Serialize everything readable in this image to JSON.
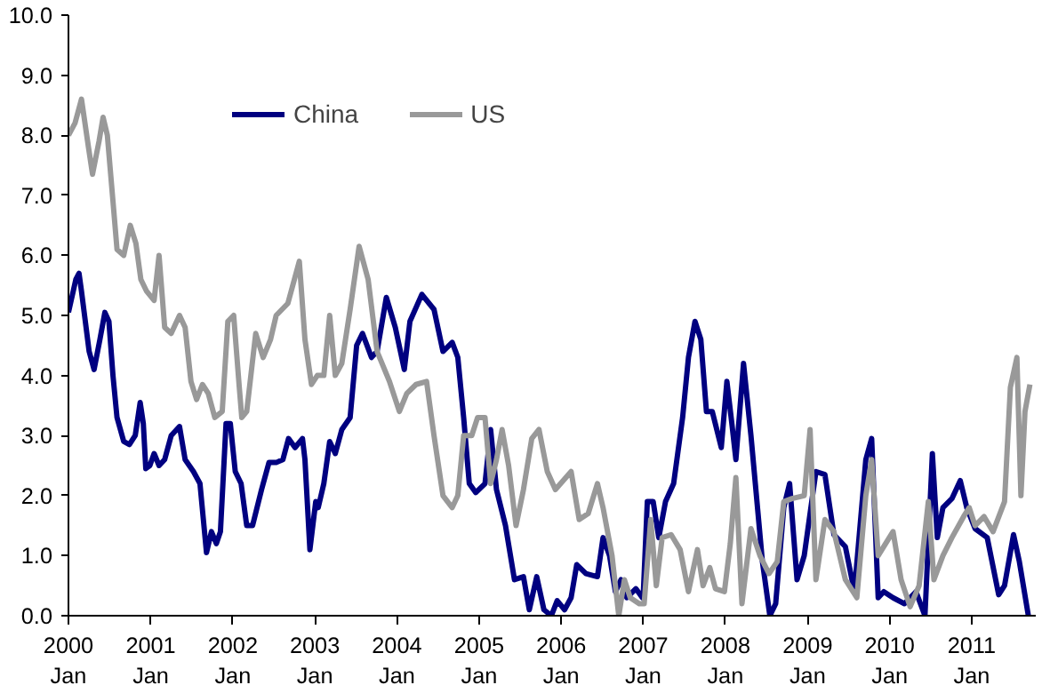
{
  "chart_data": {
    "type": "line",
    "xlim": [
      "2000-01-01",
      "2011-10-13"
    ],
    "ylim": [
      0,
      10
    ],
    "xticks": [
      {
        "value": "2000-01",
        "label": "2000\nJan"
      },
      {
        "value": "2001-01",
        "label": "2001\nJan"
      },
      {
        "value": "2002-01",
        "label": "2002\nJan"
      },
      {
        "value": "2003-01",
        "label": "2003\nJan"
      },
      {
        "value": "2004-01",
        "label": "2004\nJan"
      },
      {
        "value": "2005-01",
        "label": "2005\nJan"
      },
      {
        "value": "2006-01",
        "label": "2006\nJan"
      },
      {
        "value": "2007-01",
        "label": "2007\nJan"
      },
      {
        "value": "2008-01",
        "label": "2008\nJan"
      },
      {
        "value": "2009-01",
        "label": "2009\nJan"
      },
      {
        "value": "2010-01",
        "label": "2010\nJan"
      },
      {
        "value": "2011-01",
        "label": "2011\nJan"
      }
    ],
    "yticks": [
      {
        "value": 0,
        "label": "0.0"
      },
      {
        "value": 1,
        "label": "1.0"
      },
      {
        "value": 2,
        "label": "2.0"
      },
      {
        "value": 3,
        "label": "3.0"
      },
      {
        "value": 4,
        "label": "4.0"
      },
      {
        "value": 5,
        "label": "5.0"
      },
      {
        "value": 6,
        "label": "6.0"
      },
      {
        "value": 7,
        "label": "7.0"
      },
      {
        "value": 8,
        "label": "8.0"
      },
      {
        "value": 9,
        "label": "9.0"
      },
      {
        "value": 10,
        "label": "10.0"
      }
    ],
    "legend": "top",
    "line_style": "solid",
    "series": [
      {
        "name": "China",
        "color": "#000080",
        "x": [
          "2000-01-01",
          "2000-02-03",
          "2000-02-17",
          "2000-02-28",
          "2000-04-02",
          "2000-04-24",
          "2000-05-20",
          "2000-06-11",
          "2000-06-29",
          "2000-07-17",
          "2000-08-04",
          "2000-09-03",
          "2000-09-28",
          "2000-10-24",
          "2000-11-15",
          "2000-11-29",
          "2000-12-10",
          "2000-12-28",
          "2001-01-16",
          "2001-02-07",
          "2001-03-04",
          "2001-04-02",
          "2001-05-09",
          "2001-06-03",
          "2001-07-10",
          "2001-08-08",
          "2001-09-06",
          "2001-09-28",
          "2001-10-20",
          "2001-11-07",
          "2001-12-02",
          "2001-12-21",
          "2002-01-12",
          "2002-02-07",
          "2002-03-04",
          "2002-03-30",
          "2002-05-09",
          "2002-06-11",
          "2002-07-13",
          "2002-08-12",
          "2002-09-06",
          "2002-10-05",
          "2002-11-07",
          "2002-11-18",
          "2002-12-10",
          "2003-01-05",
          "2003-01-16",
          "2003-02-10",
          "2003-03-08",
          "2003-04-02",
          "2003-05-01",
          "2003-06-07",
          "2003-07-06",
          "2003-08-01",
          "2003-09-10",
          "2003-10-05",
          "2003-11-15",
          "2003-12-25",
          "2004-02-03",
          "2004-02-28",
          "2004-04-21",
          "2004-06-14",
          "2004-07-24",
          "2004-09-03",
          "2004-09-28",
          "2004-10-24",
          "2004-11-18",
          "2004-12-17",
          "2005-01-27",
          "2005-02-21",
          "2005-03-19",
          "2005-04-28",
          "2005-06-07",
          "2005-07-17",
          "2005-08-12",
          "2005-09-14",
          "2005-10-16",
          "2005-11-18",
          "2005-12-14",
          "2006-01-16",
          "2006-02-14",
          "2006-03-11",
          "2006-04-21",
          "2006-06-11",
          "2006-07-06",
          "2006-08-04",
          "2006-08-30",
          "2006-09-24",
          "2006-10-20",
          "2006-11-29",
          "2006-12-28",
          "2007-01-01",
          "2007-01-19",
          "2007-02-14",
          "2007-03-11",
          "2007-04-10",
          "2007-05-16",
          "2007-06-25",
          "2007-07-21",
          "2007-08-19",
          "2007-09-14",
          "2007-10-09",
          "2007-11-04",
          "2007-12-14",
          "2008-01-08",
          "2008-01-30",
          "2008-02-17",
          "2008-03-22",
          "2008-04-24",
          "2008-06-14",
          "2008-07-17",
          "2008-08-12",
          "2008-09-17",
          "2008-10-13",
          "2008-11-15",
          "2008-12-17",
          "2009-02-07",
          "2009-03-19",
          "2009-04-28",
          "2009-06-18",
          "2009-07-28",
          "2009-09-17",
          "2009-10-13",
          "2009-11-11",
          "2009-12-06",
          "2010-01-16",
          "2010-03-08",
          "2010-04-28",
          "2010-06-07",
          "2010-07-10",
          "2010-08-01",
          "2010-08-26",
          "2010-10-05",
          "2010-11-11",
          "2010-12-10",
          "2011-01-16",
          "2011-03-11",
          "2011-05-01",
          "2011-05-27",
          "2011-07-06",
          "2011-08-01",
          "2011-09-10"
        ],
        "values": [
          5.05,
          5.6,
          5.7,
          5.4,
          4.4,
          4.1,
          4.6,
          5.05,
          4.9,
          4.0,
          3.3,
          2.9,
          2.85,
          3.0,
          3.55,
          3.2,
          2.45,
          2.5,
          2.7,
          2.5,
          2.6,
          3.0,
          3.15,
          2.6,
          2.4,
          2.2,
          1.05,
          1.4,
          1.2,
          1.4,
          3.2,
          3.2,
          2.4,
          2.2,
          1.5,
          1.5,
          2.1,
          2.55,
          2.55,
          2.6,
          2.95,
          2.8,
          2.95,
          2.6,
          1.1,
          1.9,
          1.8,
          2.2,
          2.9,
          2.7,
          3.1,
          3.3,
          4.5,
          4.7,
          4.3,
          4.4,
          5.3,
          4.8,
          4.1,
          4.9,
          5.35,
          5.1,
          4.4,
          4.55,
          4.3,
          3.3,
          2.2,
          2.05,
          2.2,
          3.1,
          2.1,
          1.5,
          0.6,
          0.65,
          0.1,
          0.65,
          0.1,
          0.0,
          0.25,
          0.1,
          0.3,
          0.85,
          0.7,
          0.65,
          1.3,
          1.0,
          0.4,
          0.6,
          0.3,
          0.45,
          0.3,
          0.35,
          1.9,
          1.9,
          1.3,
          1.9,
          2.2,
          3.3,
          4.3,
          4.9,
          4.6,
          3.4,
          3.4,
          2.8,
          3.9,
          3.2,
          2.6,
          4.2,
          3.0,
          0.9,
          0.0,
          0.2,
          1.8,
          2.2,
          0.6,
          1.0,
          2.4,
          2.35,
          1.35,
          1.15,
          0.4,
          2.6,
          2.95,
          0.3,
          0.4,
          0.3,
          0.2,
          0.4,
          0.0,
          2.7,
          1.3,
          1.8,
          1.95,
          2.25,
          1.8,
          1.45,
          1.3,
          0.35,
          0.5,
          1.35,
          0.9,
          0.0
        ]
      },
      {
        "name": "US",
        "color": "#999999",
        "x": [
          "2000-01-01",
          "2000-01-30",
          "2000-02-28",
          "2000-03-30",
          "2000-04-17",
          "2000-05-16",
          "2000-06-03",
          "2000-06-22",
          "2000-07-17",
          "2000-08-04",
          "2000-09-03",
          "2000-10-02",
          "2000-10-27",
          "2000-11-18",
          "2000-12-14",
          "2001-01-16",
          "2001-02-07",
          "2001-03-04",
          "2001-04-02",
          "2001-05-09",
          "2001-06-03",
          "2001-06-29",
          "2001-07-24",
          "2001-08-19",
          "2001-09-14",
          "2001-10-13",
          "2001-11-15",
          "2001-12-10",
          "2002-01-05",
          "2002-01-30",
          "2002-02-10",
          "2002-03-04",
          "2002-04-13",
          "2002-05-16",
          "2002-06-18",
          "2002-07-13",
          "2002-09-03",
          "2002-10-24",
          "2002-11-18",
          "2002-12-17",
          "2003-01-12",
          "2003-02-10",
          "2003-03-08",
          "2003-04-02",
          "2003-05-01",
          "2003-06-07",
          "2003-07-17",
          "2003-08-26",
          "2003-10-05",
          "2003-11-29",
          "2004-01-12",
          "2004-02-14",
          "2004-03-26",
          "2004-05-12",
          "2004-06-14",
          "2004-07-24",
          "2004-09-03",
          "2004-09-28",
          "2004-10-24",
          "2004-11-29",
          "2004-12-25",
          "2005-01-27",
          "2005-02-21",
          "2005-03-19",
          "2005-04-13",
          "2005-05-12",
          "2005-06-14",
          "2005-07-17",
          "2005-08-23",
          "2005-09-24",
          "2005-10-31",
          "2005-12-06",
          "2006-02-14",
          "2006-03-22",
          "2006-05-01",
          "2006-06-11",
          "2006-07-06",
          "2006-08-15",
          "2006-09-14",
          "2006-10-09",
          "2006-11-04",
          "2006-12-14",
          "2007-01-05",
          "2007-02-03",
          "2007-02-28",
          "2007-03-26",
          "2007-05-05",
          "2007-06-14",
          "2007-07-21",
          "2007-08-30",
          "2007-09-24",
          "2007-10-24",
          "2007-11-18",
          "2007-12-28",
          "2008-01-23",
          "2008-02-17",
          "2008-03-15",
          "2008-04-24",
          "2008-06-03",
          "2008-07-13",
          "2008-08-19",
          "2008-09-17",
          "2008-10-24",
          "2008-12-17",
          "2009-01-12",
          "2009-02-07",
          "2009-03-19",
          "2009-04-28",
          "2009-06-18",
          "2009-08-08",
          "2009-09-17",
          "2009-10-13",
          "2009-11-11",
          "2010-01-16",
          "2010-02-21",
          "2010-04-02",
          "2010-05-12",
          "2010-06-22",
          "2010-07-17",
          "2010-08-26",
          "2010-10-05",
          "2010-11-26",
          "2010-12-21",
          "2011-01-16",
          "2011-02-25",
          "2011-04-06",
          "2011-05-27",
          "2011-06-22",
          "2011-07-21",
          "2011-08-08",
          "2011-08-26",
          "2011-09-17"
        ],
        "values": [
          8.0,
          8.2,
          8.6,
          7.8,
          7.35,
          7.9,
          8.3,
          8.0,
          6.9,
          6.1,
          6.0,
          6.5,
          6.2,
          5.6,
          5.4,
          5.25,
          6.0,
          4.8,
          4.7,
          5.0,
          4.8,
          3.9,
          3.6,
          3.85,
          3.7,
          3.3,
          3.4,
          4.9,
          5.0,
          3.8,
          3.3,
          3.4,
          4.7,
          4.3,
          4.6,
          5.0,
          5.2,
          5.9,
          4.6,
          3.85,
          4.0,
          4.0,
          5.0,
          4.0,
          4.2,
          5.1,
          6.15,
          5.6,
          4.4,
          3.9,
          3.4,
          3.7,
          3.85,
          3.9,
          3.0,
          2.0,
          1.8,
          2.0,
          3.0,
          3.0,
          3.3,
          3.3,
          2.2,
          2.6,
          3.1,
          2.5,
          1.5,
          2.1,
          2.95,
          3.1,
          2.4,
          2.1,
          2.4,
          1.6,
          1.7,
          2.2,
          1.8,
          1.0,
          0.0,
          0.6,
          0.3,
          0.2,
          0.2,
          1.6,
          0.5,
          1.3,
          1.35,
          1.1,
          0.4,
          1.1,
          0.5,
          0.8,
          0.45,
          0.4,
          1.2,
          2.3,
          0.2,
          1.45,
          1.0,
          0.7,
          0.9,
          1.9,
          1.95,
          2.0,
          3.1,
          0.6,
          1.6,
          1.4,
          0.6,
          0.3,
          2.0,
          2.6,
          1.0,
          1.4,
          0.6,
          0.15,
          0.5,
          1.9,
          0.6,
          1.0,
          1.3,
          1.65,
          1.8,
          1.5,
          1.65,
          1.4,
          1.9,
          3.8,
          4.3,
          2.0,
          3.4,
          3.85
        ]
      }
    ]
  }
}
